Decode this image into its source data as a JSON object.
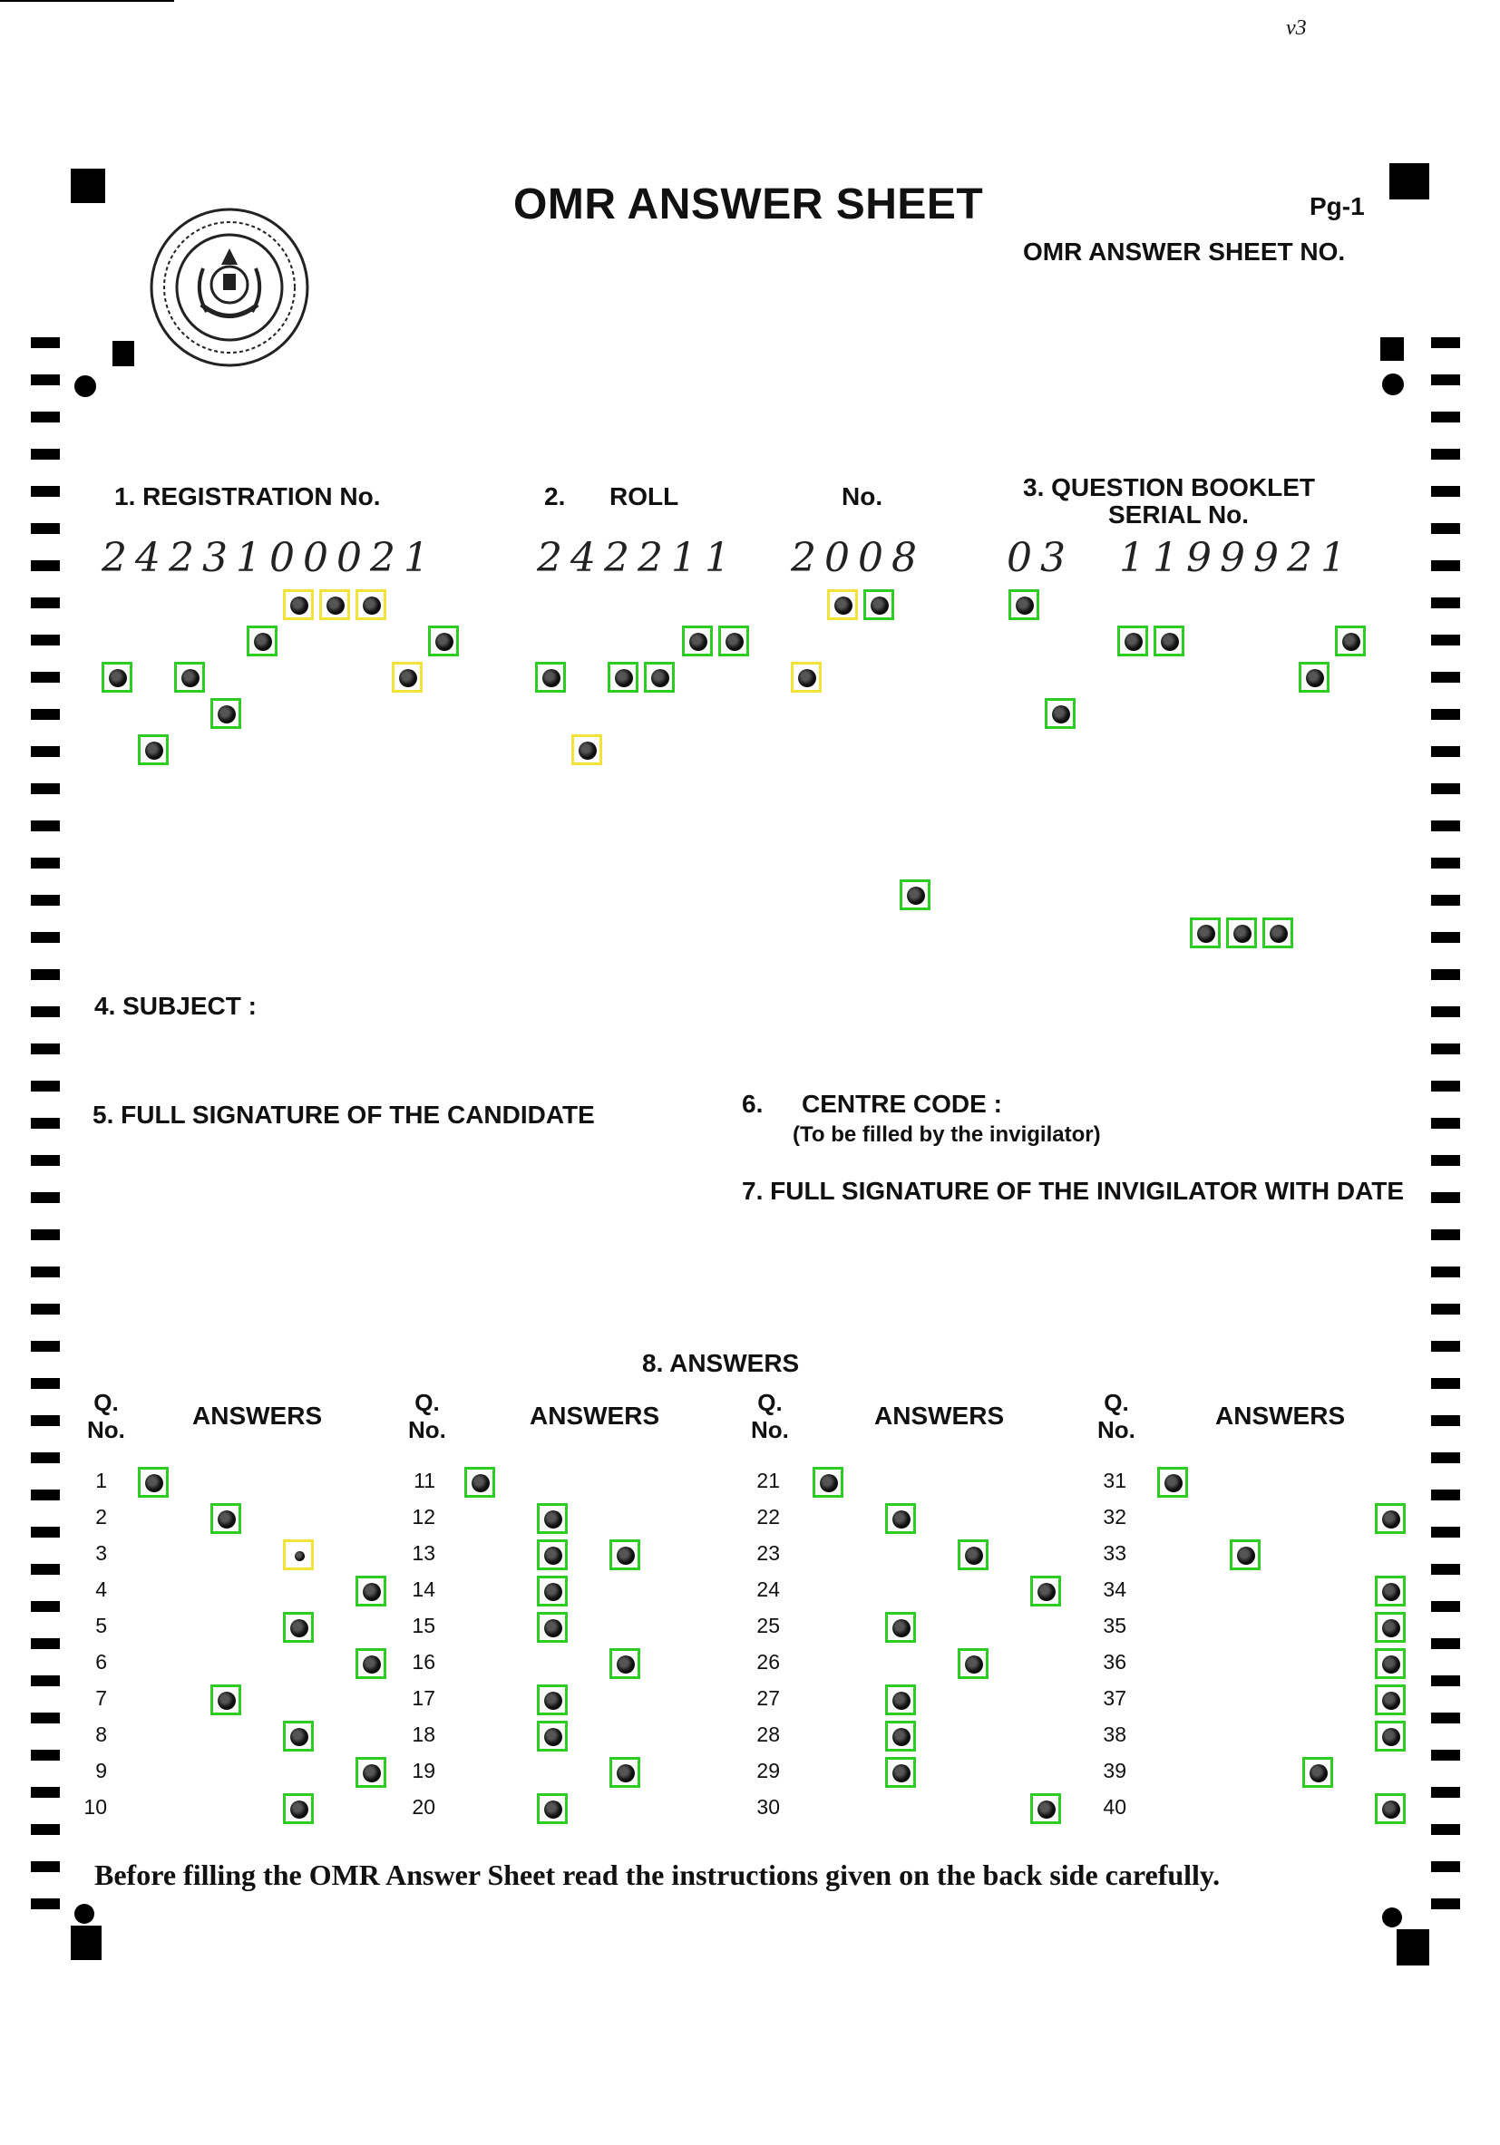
{
  "header": {
    "title": "OMR ANSWER SHEET",
    "page": "Pg-1",
    "sheet_no_label": "OMR ANSWER SHEET NO.",
    "corner_mark": "v3",
    "seal": "emblem-seal-icon"
  },
  "fields": {
    "registration": {
      "label": "1.  REGISTRATION No.",
      "value": "2423100021"
    },
    "roll": {
      "num": "2.",
      "label": "ROLL",
      "no": "No.",
      "value_1": "242211",
      "value_2": "2008"
    },
    "booklet": {
      "label_1": "3.  QUESTION BOOKLET",
      "label_2": "SERIAL  No.",
      "value_1": "03",
      "value_2": "1199921"
    },
    "subject": {
      "label": "4.  SUBJECT :"
    },
    "candidate_signature": {
      "label": "5.  FULL SIGNATURE OF THE CANDIDATE"
    },
    "centre_code": {
      "num": "6.",
      "label": "CENTRE CODE :",
      "note": "(To be filled by the invigilator)"
    },
    "invigilator_signature": {
      "label": "7.  FULL SIGNATURE OF THE INVIGILATOR WITH DATE"
    }
  },
  "answers": {
    "title": "8.  ANSWERS",
    "q_header": "Q.",
    "no_header": "No.",
    "answers_header": "ANSWERS",
    "questions": [
      "1",
      "2",
      "3",
      "4",
      "5",
      "6",
      "7",
      "8",
      "9",
      "10",
      "11",
      "12",
      "13",
      "14",
      "15",
      "16",
      "17",
      "18",
      "19",
      "20",
      "21",
      "22",
      "23",
      "24",
      "25",
      "26",
      "27",
      "28",
      "29",
      "30",
      "31",
      "32",
      "33",
      "34",
      "35",
      "36",
      "37",
      "38",
      "39",
      "40"
    ]
  },
  "footer": {
    "note": "Before filling the OMR Answer Sheet read the instructions given on the back side carefully."
  },
  "colors": {
    "ink": "#111111",
    "detected": "#2ecc22",
    "uncertain": "#f3e23a"
  }
}
